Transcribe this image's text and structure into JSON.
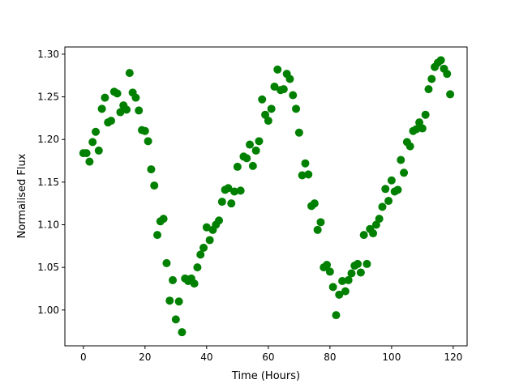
{
  "chart_data": {
    "type": "scatter",
    "title": "",
    "xlabel": "Time (Hours)",
    "ylabel": "Normalised Flux",
    "xlim": [
      -6,
      124.5
    ],
    "ylim": [
      0.958,
      1.3085
    ],
    "xticks": [
      0,
      20,
      40,
      60,
      80,
      100,
      120
    ],
    "xtick_labels": [
      "0",
      "20",
      "40",
      "60",
      "80",
      "100",
      "120"
    ],
    "yticks": [
      1.0,
      1.05,
      1.1,
      1.15,
      1.2,
      1.25,
      1.3
    ],
    "ytick_labels": [
      "1.00",
      "1.05",
      "1.10",
      "1.15",
      "1.20",
      "1.25",
      "1.30"
    ],
    "grid": false,
    "marker_color": "#008000",
    "x": [
      0,
      1,
      2,
      3,
      4,
      5,
      6,
      7,
      8,
      9,
      10,
      11,
      12,
      13,
      14,
      15,
      16,
      17,
      18,
      19,
      20,
      21,
      22,
      23,
      24,
      25,
      26,
      27,
      28,
      29,
      30,
      31,
      32,
      33,
      34,
      35,
      36,
      37,
      38,
      39,
      40,
      41,
      42,
      43,
      44,
      45,
      46,
      47,
      48,
      49,
      50,
      51,
      52,
      53,
      54,
      55,
      56,
      57,
      58,
      59,
      60,
      61,
      62,
      63,
      64,
      65,
      66,
      67,
      68,
      69,
      70,
      71,
      72,
      73,
      74,
      75,
      76,
      77,
      78,
      79,
      80,
      81,
      82,
      83,
      84,
      85,
      86,
      87,
      88,
      89,
      90,
      91,
      92,
      93,
      94,
      95,
      96,
      97,
      98,
      99,
      100,
      101,
      102,
      103,
      104,
      105,
      106,
      107,
      108,
      109,
      110,
      111,
      112,
      113,
      114,
      115,
      116,
      117,
      118,
      119
    ],
    "y": [
      1.184,
      1.184,
      1.174,
      1.197,
      1.209,
      1.187,
      1.236,
      1.249,
      1.22,
      1.222,
      1.256,
      1.254,
      1.232,
      1.24,
      1.235,
      1.278,
      1.255,
      1.249,
      1.234,
      1.211,
      1.21,
      1.198,
      1.165,
      1.146,
      1.088,
      1.104,
      1.107,
      1.055,
      1.011,
      1.035,
      0.989,
      1.01,
      0.974,
      1.037,
      1.034,
      1.037,
      1.031,
      1.05,
      1.065,
      1.073,
      1.097,
      1.082,
      1.094,
      1.1,
      1.105,
      1.127,
      1.141,
      1.143,
      1.125,
      1.139,
      1.168,
      1.14,
      1.18,
      1.178,
      1.194,
      1.169,
      1.187,
      1.198,
      1.247,
      1.229,
      1.222,
      1.236,
      1.262,
      1.282,
      1.258,
      1.259,
      1.277,
      1.271,
      1.252,
      1.236,
      1.208,
      1.158,
      1.172,
      1.159,
      1.122,
      1.125,
      1.094,
      1.103,
      1.05,
      1.053,
      1.045,
      1.027,
      0.994,
      1.018,
      1.034,
      1.022,
      1.035,
      1.043,
      1.052,
      1.054,
      1.044,
      1.088,
      1.054,
      1.095,
      1.09,
      1.1,
      1.107,
      1.121,
      1.142,
      1.128,
      1.152,
      1.139,
      1.141,
      1.176,
      1.161,
      1.197,
      1.192,
      1.21,
      1.212,
      1.22,
      1.213,
      1.229,
      1.259,
      1.271,
      1.285,
      1.29,
      1.293,
      1.283,
      1.277,
      1.253
    ]
  }
}
